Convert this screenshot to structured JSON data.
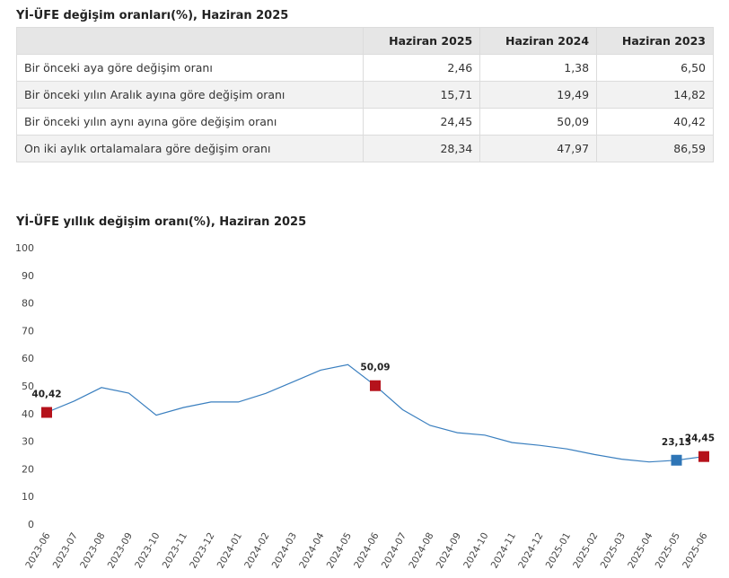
{
  "table": {
    "title": "Yİ-ÜFE değişim oranları(%), Haziran 2025",
    "headers": [
      "",
      "Haziran 2025",
      "Haziran 2024",
      "Haziran 2023"
    ],
    "rows": [
      {
        "label": "Bir önceki aya göre değişim oranı",
        "values": [
          "2,46",
          "1,38",
          "6,50"
        ]
      },
      {
        "label": "Bir önceki yılın Aralık ayına göre değişim oranı",
        "values": [
          "15,71",
          "19,49",
          "14,82"
        ]
      },
      {
        "label": "Bir önceki yılın aynı ayına göre değişim oranı",
        "values": [
          "24,45",
          "50,09",
          "40,42"
        ]
      },
      {
        "label": "On iki aylık ortalamalara göre değişim oranı",
        "values": [
          "28,34",
          "47,97",
          "86,59"
        ]
      }
    ]
  },
  "chart_data": {
    "type": "line",
    "title": "Yİ-ÜFE yıllık değişim oranı(%), Haziran 2025",
    "xlabel": "",
    "ylabel": "",
    "ylim": [
      0,
      100
    ],
    "yticks": [
      "0",
      "10",
      "20",
      "30",
      "40",
      "50",
      "60",
      "70",
      "80",
      "90",
      "100"
    ],
    "grid": false,
    "legend": "none",
    "line_color": "#3a7fbf",
    "x": [
      "2023-06",
      "2023-07",
      "2023-08",
      "2023-09",
      "2023-10",
      "2023-11",
      "2023-12",
      "2024-01",
      "2024-02",
      "2024-03",
      "2024-04",
      "2024-05",
      "2024-06",
      "2024-07",
      "2024-08",
      "2024-09",
      "2024-10",
      "2024-11",
      "2024-12",
      "2025-01",
      "2025-02",
      "2025-03",
      "2025-04",
      "2025-05",
      "2025-06"
    ],
    "series": [
      {
        "values": [
          40.42,
          44.5,
          49.4,
          47.4,
          39.4,
          42.2,
          44.2,
          44.2,
          47.3,
          51.5,
          55.7,
          57.7,
          50.09,
          41.4,
          35.7,
          33.1,
          32.2,
          29.5,
          28.5,
          27.2,
          25.2,
          23.5,
          22.5,
          23.13,
          24.45
        ]
      }
    ],
    "markers": [
      {
        "x": "2023-06",
        "value": 40.42,
        "label": "40,42",
        "color": "#b5121b"
      },
      {
        "x": "2024-06",
        "value": 50.09,
        "label": "50,09",
        "color": "#b5121b"
      },
      {
        "x": "2025-05",
        "value": 23.13,
        "label": "23,13",
        "color": "#2e75b6"
      },
      {
        "x": "2025-06",
        "value": 24.45,
        "label": "24,45",
        "color": "#b5121b"
      }
    ]
  }
}
